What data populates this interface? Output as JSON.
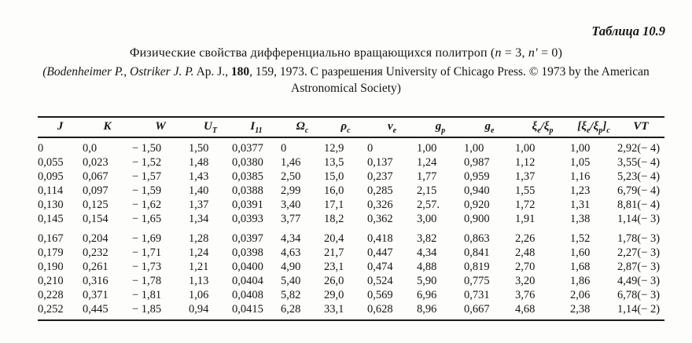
{
  "header": {
    "table_label": "Таблица 10.9",
    "title_segments": [
      {
        "text": "Физические свойства дифференциально вращающихся политроп ("
      },
      {
        "text": "n",
        "italic": true
      },
      {
        "text": " = 3, "
      },
      {
        "text": "n′",
        "italic": true
      },
      {
        "text": " = 0)"
      }
    ],
    "attribution_line1_segments": [
      {
        "text": "(Bodenheimer P.",
        "italic": true
      },
      {
        "text": ", "
      },
      {
        "text": "Ostriker J. P.",
        "italic": true
      },
      {
        "text": " Ap. J., "
      },
      {
        "text": "180",
        "bold": true
      },
      {
        "text": ", 159, 1973. С разрешения University of Chicago Press. © 1973 by the American"
      }
    ],
    "attribution_line2": "Astronomical Society)"
  },
  "table": {
    "columns": [
      "J",
      "K",
      "W",
      "U_{T}",
      "I_{11}",
      "Ω_{c}",
      "ρ_{c}",
      "v_{e}",
      "g_{p}",
      "g_{e}",
      "ξ_{e}/ξ_{p}",
      "[ξ_{e}/ξ_{p}]_{c}",
      "VT"
    ],
    "rows": [
      [
        "0",
        "0,0",
        "− 1,50",
        "1,50",
        "0,0377",
        "0",
        "12,9",
        "0",
        "1,00",
        "1,00",
        "1,00",
        "1,00",
        "2,92(− 4)"
      ],
      [
        "0,055",
        "0,023",
        "− 1,52",
        "1,48",
        "0,0380",
        "1,46",
        "13,5",
        "0,137",
        "1,24",
        "0,987",
        "1,12",
        "1,05",
        "3,55(− 4)"
      ],
      [
        "0,095",
        "0,067",
        "− 1,57",
        "1,43",
        "0,0385",
        "2,50",
        "15,0",
        "0,237",
        "1,77",
        "0,959",
        "1,37",
        "1,16",
        "5,23(− 4)"
      ],
      [
        "0,114",
        "0,097",
        "− 1,59",
        "1,40",
        "0,0388",
        "2,99",
        "16,0",
        "0,285",
        "2,15",
        "0,940",
        "1,55",
        "1,23",
        "6,79(− 4)"
      ],
      [
        "0,130",
        "0,125",
        "− 1,62",
        "1,37",
        "0,0391",
        "3,40",
        "17,1",
        "0,326",
        "2,57.",
        "0,920",
        "1,72",
        "1,31",
        "8,81(− 4)"
      ],
      [
        "0,145",
        "0,154",
        "− 1,65",
        "1,34",
        "0,0393",
        "3,77",
        "18,2",
        "0,362",
        "3,00",
        "0,900",
        "1,91",
        "1,38",
        "1,14(− 3)"
      ],
      [
        "0,167",
        "0,204",
        "− 1,69",
        "1,28",
        "0,0397",
        "4,34",
        "20,4",
        "0,418",
        "3,82",
        "0,863",
        "2,26",
        "1,52",
        "1,78(− 3)"
      ],
      [
        "0,179",
        "0,232",
        "− 1,71",
        "1,24",
        "0,0398",
        "4,63",
        "21,7",
        "0,447",
        "4,34",
        "0,841",
        "2,48",
        "1,60",
        "2,27(− 3)"
      ],
      [
        "0,190",
        "0,261",
        "− 1,73",
        "1,21",
        "0,0400",
        "4,90",
        "23,1",
        "0,474",
        "4,88",
        "0,819",
        "2,70",
        "1,68",
        "2,87(− 3)"
      ],
      [
        "0,210",
        "0,316",
        "− 1,78",
        "1,13",
        "0,0404",
        "5,40",
        "26,0",
        "0,524",
        "5,90",
        "0,775",
        "3,20",
        "1,86",
        "4,49(− 3)"
      ],
      [
        "0,228",
        "0,371",
        "− 1,81",
        "1,06",
        "0,0408",
        "5,82",
        "29,0",
        "0,569",
        "6,96",
        "0,731",
        "3,76",
        "2,06",
        "6,78(− 3)"
      ],
      [
        "0,252",
        "0,445",
        "− 1,85",
        "0,94",
        "0,0415",
        "6,28",
        "33,1",
        "0,628",
        "8,96",
        "0,667",
        "4,68",
        "2,38",
        "1,14(− 2)"
      ]
    ]
  }
}
